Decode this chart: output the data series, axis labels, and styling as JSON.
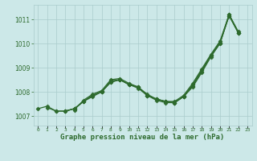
{
  "title": "Graphe pression niveau de la mer (hPa)",
  "hours": [
    0,
    1,
    2,
    3,
    4,
    5,
    6,
    7,
    8,
    9,
    10,
    11,
    12,
    13,
    14,
    15,
    16,
    17,
    18,
    19,
    20,
    21,
    22,
    23
  ],
  "series": [
    [
      1007.3,
      1007.4,
      1007.2,
      1007.2,
      1007.3,
      1007.6,
      1007.8,
      1008.0,
      1008.4,
      1008.5,
      1008.3,
      1008.2,
      1007.85,
      1007.7,
      1007.6,
      1007.55,
      1007.8,
      1008.2,
      1008.8,
      1009.45,
      1010.0,
      1011.2,
      1010.45,
      null
    ],
    [
      null,
      1007.35,
      1007.2,
      1007.2,
      1007.3,
      1007.6,
      1007.85,
      1008.0,
      1008.4,
      1008.5,
      1008.3,
      1008.2,
      1007.85,
      1007.7,
      1007.6,
      1007.55,
      1007.8,
      1008.25,
      1008.85,
      1009.5,
      1010.0,
      1011.15,
      1010.45,
      null
    ],
    [
      null,
      null,
      null,
      1007.2,
      1007.3,
      1007.6,
      1007.85,
      1008.0,
      1008.45,
      1008.5,
      1008.3,
      1008.15,
      1007.85,
      1007.65,
      1007.55,
      1007.55,
      1007.8,
      1008.3,
      1008.9,
      1009.5,
      1010.05,
      1011.15,
      1010.45,
      null
    ],
    [
      null,
      null,
      null,
      null,
      1007.25,
      1007.65,
      1007.9,
      1008.05,
      1008.5,
      1008.55,
      1008.35,
      1008.2,
      1007.9,
      1007.7,
      1007.6,
      1007.6,
      1007.85,
      1008.35,
      1008.95,
      1009.55,
      1010.1,
      1011.2,
      1010.5,
      null
    ]
  ],
  "line_color": "#2d6a2d",
  "bg_color": "#cce8e8",
  "grid_color": "#aacccc",
  "ylim": [
    1006.6,
    1011.6
  ],
  "yticks": [
    1007,
    1008,
    1009,
    1010,
    1011
  ],
  "marker": "D",
  "markersize": 2.5,
  "linewidth": 0.9
}
